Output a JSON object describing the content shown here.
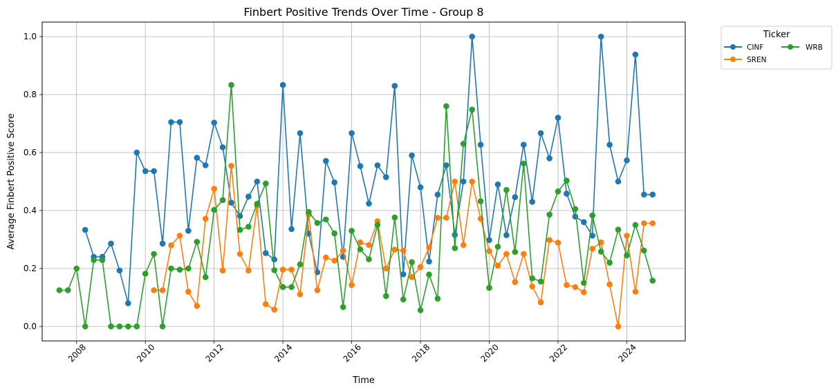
{
  "chart_data": {
    "type": "line",
    "title": "Finbert Positive Trends Over Time - Group 8",
    "xlabel": "Time",
    "ylabel": "Average Finbert Positive Score",
    "xlim": [
      2007.0,
      2025.7
    ],
    "ylim": [
      -0.05,
      1.05
    ],
    "x_ticks": [
      2008,
      2010,
      2012,
      2014,
      2016,
      2018,
      2020,
      2022,
      2024
    ],
    "x_tick_labels": [
      "2008",
      "2010",
      "2012",
      "2014",
      "2016",
      "2018",
      "2020",
      "2022",
      "2024"
    ],
    "y_ticks": [
      0.0,
      0.2,
      0.4,
      0.6,
      0.8,
      1.0
    ],
    "y_tick_labels": [
      "0.0",
      "0.2",
      "0.4",
      "0.6",
      "0.8",
      "1.0"
    ],
    "grid": true,
    "legend": {
      "title": "Ticker",
      "placement": "outside upper right",
      "columns": 2
    },
    "series": [
      {
        "name": "CINF",
        "color": "#1f77b4",
        "x": [
          2008.25,
          2008.5,
          2008.75,
          2009.0,
          2009.25,
          2009.5,
          2009.75,
          2010.0,
          2010.25,
          2010.5,
          2010.75,
          2011.0,
          2011.25,
          2011.5,
          2011.75,
          2012.0,
          2012.25,
          2012.5,
          2012.75,
          2013.0,
          2013.25,
          2013.5,
          2013.75,
          2014.0,
          2014.25,
          2014.5,
          2014.75,
          2015.0,
          2015.25,
          2015.5,
          2015.75,
          2016.0,
          2016.25,
          2016.5,
          2016.75,
          2017.0,
          2017.25,
          2017.5,
          2017.75,
          2018.0,
          2018.25,
          2018.5,
          2018.75,
          2019.0,
          2019.25,
          2019.5,
          2019.75,
          2020.0,
          2020.25,
          2020.5,
          2020.75,
          2021.0,
          2021.25,
          2021.5,
          2021.75,
          2022.0,
          2022.25,
          2022.5,
          2022.75,
          2023.0,
          2023.25,
          2023.5,
          2023.75,
          2024.0,
          2024.25,
          2024.5,
          2024.75
        ],
        "y": [
          0.333,
          0.24,
          0.24,
          0.286,
          0.193,
          0.08,
          0.6,
          0.536,
          0.536,
          0.286,
          0.705,
          0.705,
          0.33,
          0.582,
          0.556,
          0.703,
          0.618,
          0.427,
          0.381,
          0.448,
          0.5,
          0.253,
          0.231,
          0.833,
          0.336,
          0.667,
          0.32,
          0.187,
          0.571,
          0.497,
          0.24,
          0.667,
          0.553,
          0.424,
          0.556,
          0.515,
          0.83,
          0.18,
          0.59,
          0.48,
          0.224,
          0.455,
          0.556,
          0.316,
          0.5,
          1.0,
          0.627,
          0.298,
          0.49,
          0.315,
          0.446,
          0.627,
          0.43,
          0.667,
          0.58,
          0.72,
          0.458,
          0.379,
          0.36,
          0.313,
          1.0,
          0.627,
          0.5,
          0.573,
          0.938,
          0.455,
          0.455
        ]
      },
      {
        "name": "SREN",
        "color": "#ff7f0e",
        "x": [
          2010.25,
          2010.5,
          2010.75,
          2011.0,
          2011.25,
          2011.5,
          2011.75,
          2012.0,
          2012.25,
          2012.5,
          2012.75,
          2013.0,
          2013.25,
          2013.5,
          2013.75,
          2014.0,
          2014.25,
          2014.5,
          2014.75,
          2015.0,
          2015.25,
          2015.5,
          2015.75,
          2016.0,
          2016.25,
          2016.5,
          2016.75,
          2017.0,
          2017.25,
          2017.5,
          2017.75,
          2018.0,
          2018.25,
          2018.5,
          2018.75,
          2019.0,
          2019.25,
          2019.5,
          2019.75,
          2020.0,
          2020.25,
          2020.5,
          2020.75,
          2021.0,
          2021.25,
          2021.5,
          2021.75,
          2022.0,
          2022.25,
          2022.5,
          2022.75,
          2023.0,
          2023.25,
          2023.5,
          2023.75,
          2024.0,
          2024.25,
          2024.5,
          2024.75
        ],
        "y": [
          0.125,
          0.125,
          0.28,
          0.313,
          0.12,
          0.071,
          0.372,
          0.475,
          0.193,
          0.554,
          0.25,
          0.193,
          0.417,
          0.077,
          0.058,
          0.196,
          0.196,
          0.111,
          0.386,
          0.125,
          0.238,
          0.227,
          0.262,
          0.143,
          0.29,
          0.281,
          0.363,
          0.2,
          0.265,
          0.262,
          0.17,
          0.205,
          0.272,
          0.375,
          0.375,
          0.5,
          0.281,
          0.5,
          0.372,
          0.26,
          0.21,
          0.25,
          0.153,
          0.25,
          0.138,
          0.083,
          0.298,
          0.289,
          0.143,
          0.136,
          0.118,
          0.268,
          0.29,
          0.145,
          0.0,
          0.313,
          0.12,
          0.356,
          0.356
        ]
      },
      {
        "name": "WRB",
        "color": "#2ca02c",
        "x": [
          2007.5,
          2007.75,
          2008.0,
          2008.25,
          2008.5,
          2008.75,
          2009.0,
          2009.25,
          2009.5,
          2009.75,
          2010.0,
          2010.25,
          2010.5,
          2010.75,
          2011.0,
          2011.25,
          2011.5,
          2011.75,
          2012.0,
          2012.25,
          2012.5,
          2012.75,
          2013.0,
          2013.25,
          2013.5,
          2013.75,
          2014.0,
          2014.25,
          2014.5,
          2014.75,
          2015.0,
          2015.25,
          2015.5,
          2015.75,
          2016.0,
          2016.25,
          2016.5,
          2016.75,
          2017.0,
          2017.25,
          2017.5,
          2017.75,
          2018.0,
          2018.25,
          2018.5,
          2018.75,
          2019.0,
          2019.25,
          2019.5,
          2019.75,
          2020.0,
          2020.25,
          2020.5,
          2020.75,
          2021.0,
          2021.25,
          2021.5,
          2021.75,
          2022.0,
          2022.25,
          2022.5,
          2022.75,
          2023.0,
          2023.25,
          2023.5,
          2023.75,
          2024.0,
          2024.25,
          2024.5,
          2024.75
        ],
        "y": [
          0.125,
          0.125,
          0.2,
          0.0,
          0.229,
          0.229,
          0.0,
          0.0,
          0.0,
          0.0,
          0.182,
          0.25,
          0.0,
          0.2,
          0.196,
          0.2,
          0.292,
          0.17,
          0.402,
          0.436,
          0.833,
          0.333,
          0.344,
          0.423,
          0.493,
          0.194,
          0.136,
          0.136,
          0.214,
          0.395,
          0.357,
          0.369,
          0.321,
          0.067,
          0.33,
          0.266,
          0.232,
          0.35,
          0.105,
          0.376,
          0.093,
          0.222,
          0.056,
          0.179,
          0.096,
          0.76,
          0.27,
          0.63,
          0.748,
          0.432,
          0.133,
          0.275,
          0.471,
          0.257,
          0.562,
          0.166,
          0.155,
          0.386,
          0.466,
          0.503,
          0.405,
          0.15,
          0.383,
          0.258,
          0.22,
          0.334,
          0.245,
          0.35,
          0.262,
          0.158
        ]
      }
    ]
  }
}
